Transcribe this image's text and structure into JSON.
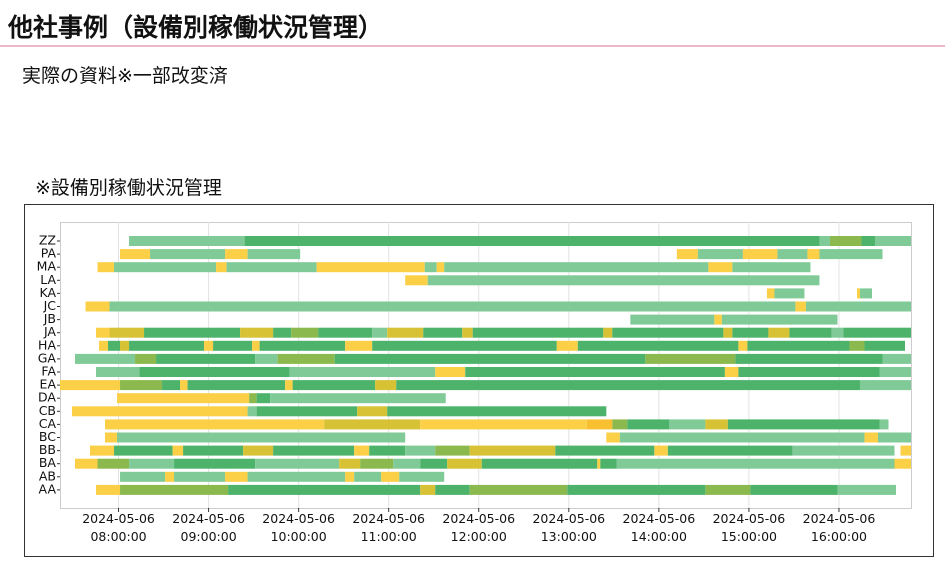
{
  "header": {
    "title": "他社事例（設備別稼働状況管理）"
  },
  "subtitle": "実際の資料※一部改変済",
  "chart_heading": "※設備別稼働状況管理",
  "chart_data": {
    "type": "gantt",
    "categories": [
      "ZZ",
      "PA",
      "MA",
      "LA",
      "KA",
      "JC",
      "JB",
      "JA",
      "HA",
      "GA",
      "FA",
      "EA",
      "DA",
      "CB",
      "CA",
      "BC",
      "BB",
      "BA",
      "AB",
      "AA"
    ],
    "segments": [
      [
        [
          "08:07",
          "09:24",
          "#7fca96"
        ],
        [
          "09:24",
          "15:47",
          "#4db36b"
        ],
        [
          "15:47",
          "15:54",
          "#7fca96"
        ],
        [
          "15:54",
          "16:15",
          "#8cb94d"
        ],
        [
          "16:15",
          "16:24",
          "#4db36b"
        ],
        [
          "16:24",
          "16:48",
          "#7fca96"
        ]
      ],
      [
        [
          "08:01",
          "08:21",
          "#fbcf46"
        ],
        [
          "08:21",
          "09:11",
          "#7fca96"
        ],
        [
          "09:11",
          "09:26",
          "#fbcf46"
        ],
        [
          "09:26",
          "10:01",
          "#7fca96"
        ],
        [
          "14:12",
          "14:26",
          "#fbcf46"
        ],
        [
          "14:26",
          "14:56",
          "#7fca96"
        ],
        [
          "14:56",
          "15:19",
          "#fbcf46"
        ],
        [
          "15:19",
          "15:39",
          "#7fca96"
        ],
        [
          "15:39",
          "15:47",
          "#fbcf46"
        ],
        [
          "15:47",
          "16:29",
          "#7fca96"
        ]
      ],
      [
        [
          "07:46",
          "07:57",
          "#fbcf46"
        ],
        [
          "07:57",
          "09:05",
          "#7fca96"
        ],
        [
          "09:05",
          "09:12",
          "#fbcf46"
        ],
        [
          "09:12",
          "10:12",
          "#7fca96"
        ],
        [
          "10:12",
          "11:24",
          "#fbcf46"
        ],
        [
          "11:24",
          "11:32",
          "#7fca96"
        ],
        [
          "11:32",
          "11:37",
          "#fbcf46"
        ],
        [
          "11:37",
          "14:33",
          "#7fca96"
        ],
        [
          "14:33",
          "14:49",
          "#fbcf46"
        ],
        [
          "14:49",
          "15:41",
          "#7fca96"
        ]
      ],
      [
        [
          "11:11",
          "11:26",
          "#fbcf46"
        ],
        [
          "11:26",
          "15:47",
          "#7fca96"
        ]
      ],
      [
        [
          "15:12",
          "15:17",
          "#fbcf46"
        ],
        [
          "15:17",
          "15:37",
          "#7fca96"
        ],
        [
          "16:12",
          "16:14",
          "#fbcf46"
        ],
        [
          "16:14",
          "16:22",
          "#7fca96"
        ]
      ],
      [
        [
          "07:38",
          "07:54",
          "#fbcf46"
        ],
        [
          "07:54",
          "15:31",
          "#7fca96"
        ],
        [
          "15:31",
          "15:38",
          "#fbcf46"
        ],
        [
          "15:38",
          "16:48",
          "#7fca96"
        ]
      ],
      [
        [
          "13:41",
          "14:37",
          "#7fca96"
        ],
        [
          "14:37",
          "14:42",
          "#fbcf46"
        ],
        [
          "14:42",
          "15:59",
          "#7fca96"
        ]
      ],
      [
        [
          "07:45",
          "07:54",
          "#fbcf46"
        ],
        [
          "07:54",
          "08:17",
          "#d7c235"
        ],
        [
          "08:17",
          "09:21",
          "#4db36b"
        ],
        [
          "09:21",
          "09:43",
          "#d7c235"
        ],
        [
          "09:43",
          "09:55",
          "#4db36b"
        ],
        [
          "09:55",
          "10:13",
          "#8cb94d"
        ],
        [
          "10:13",
          "10:49",
          "#4db36b"
        ],
        [
          "10:49",
          "10:59",
          "#7fca96"
        ],
        [
          "10:59",
          "11:23",
          "#d7c235"
        ],
        [
          "11:23",
          "11:49",
          "#4db36b"
        ],
        [
          "11:49",
          "11:56",
          "#d7c235"
        ],
        [
          "11:56",
          "13:23",
          "#4db36b"
        ],
        [
          "13:23",
          "13:29",
          "#d7c235"
        ],
        [
          "13:29",
          "14:43",
          "#4db36b"
        ],
        [
          "14:43",
          "14:49",
          "#d7c235"
        ],
        [
          "14:49",
          "15:13",
          "#4db36b"
        ],
        [
          "15:13",
          "15:27",
          "#d7c235"
        ],
        [
          "15:27",
          "15:55",
          "#4db36b"
        ],
        [
          "15:55",
          "16:03",
          "#7fca96"
        ],
        [
          "16:03",
          "16:48",
          "#4db36b"
        ]
      ],
      [
        [
          "07:47",
          "07:53",
          "#fbcf46"
        ],
        [
          "07:53",
          "08:01",
          "#4db36b"
        ],
        [
          "08:01",
          "08:07",
          "#d7c235"
        ],
        [
          "08:07",
          "08:57",
          "#4db36b"
        ],
        [
          "08:57",
          "09:03",
          "#fbcf46"
        ],
        [
          "09:03",
          "09:29",
          "#4db36b"
        ],
        [
          "09:29",
          "09:34",
          "#fbcf46"
        ],
        [
          "09:34",
          "10:31",
          "#4db36b"
        ],
        [
          "10:31",
          "10:49",
          "#fbcf46"
        ],
        [
          "10:49",
          "12:52",
          "#4db36b"
        ],
        [
          "12:52",
          "13:06",
          "#fbcf46"
        ],
        [
          "13:06",
          "14:53",
          "#4db36b"
        ],
        [
          "14:53",
          "14:59",
          "#fbcf46"
        ],
        [
          "14:59",
          "16:07",
          "#4db36b"
        ],
        [
          "16:07",
          "16:17",
          "#8cb94d"
        ],
        [
          "16:17",
          "16:44",
          "#4db36b"
        ]
      ],
      [
        [
          "07:31",
          "08:11",
          "#7fca96"
        ],
        [
          "08:11",
          "08:25",
          "#8cb94d"
        ],
        [
          "08:25",
          "09:31",
          "#4db36b"
        ],
        [
          "09:31",
          "09:46",
          "#7fca96"
        ],
        [
          "09:46",
          "10:24",
          "#8cb94d"
        ],
        [
          "10:24",
          "13:51",
          "#4db36b"
        ],
        [
          "13:51",
          "14:51",
          "#8cb94d"
        ],
        [
          "14:51",
          "16:29",
          "#4db36b"
        ],
        [
          "16:29",
          "16:48",
          "#7fca96"
        ]
      ],
      [
        [
          "07:45",
          "08:14",
          "#7fca96"
        ],
        [
          "08:14",
          "09:54",
          "#4db36b"
        ],
        [
          "09:54",
          "11:31",
          "#7fca96"
        ],
        [
          "11:31",
          "11:51",
          "#fbcf46"
        ],
        [
          "11:51",
          "14:44",
          "#4db36b"
        ],
        [
          "14:44",
          "14:53",
          "#fbcf46"
        ],
        [
          "14:53",
          "16:27",
          "#4db36b"
        ],
        [
          "16:27",
          "16:48",
          "#7fca96"
        ]
      ],
      [
        [
          "07:21",
          "08:01",
          "#fbcf46"
        ],
        [
          "08:01",
          "08:29",
          "#8cb94d"
        ],
        [
          "08:29",
          "08:41",
          "#4db36b"
        ],
        [
          "08:41",
          "08:46",
          "#fbcf46"
        ],
        [
          "08:46",
          "09:51",
          "#4db36b"
        ],
        [
          "09:51",
          "09:56",
          "#fbcf46"
        ],
        [
          "09:56",
          "10:51",
          "#4db36b"
        ],
        [
          "10:51",
          "11:05",
          "#d7c235"
        ],
        [
          "11:05",
          "16:14",
          "#4db36b"
        ],
        [
          "16:14",
          "16:48",
          "#7fca96"
        ]
      ],
      [
        [
          "07:59",
          "09:27",
          "#fbcf46"
        ],
        [
          "09:27",
          "09:32",
          "#8cb94d"
        ],
        [
          "09:32",
          "09:41",
          "#4db36b"
        ],
        [
          "09:41",
          "11:38",
          "#7fca96"
        ]
      ],
      [
        [
          "07:29",
          "09:26",
          "#fbcf46"
        ],
        [
          "09:26",
          "09:32",
          "#7fca96"
        ],
        [
          "09:32",
          "10:39",
          "#4db36b"
        ],
        [
          "10:39",
          "10:59",
          "#d7c235"
        ],
        [
          "10:59",
          "13:25",
          "#4db36b"
        ]
      ],
      [
        [
          "07:51",
          "10:17",
          "#fbcf46"
        ],
        [
          "10:17",
          "11:21",
          "#d7c235"
        ],
        [
          "11:21",
          "13:12",
          "#fbcf46"
        ],
        [
          "13:12",
          "13:29",
          "#f8c030"
        ],
        [
          "13:29",
          "13:39",
          "#8cb94d"
        ],
        [
          "13:39",
          "14:07",
          "#4db36b"
        ],
        [
          "14:07",
          "14:31",
          "#7fca96"
        ],
        [
          "14:31",
          "14:46",
          "#d7c235"
        ],
        [
          "14:46",
          "16:27",
          "#4db36b"
        ],
        [
          "16:27",
          "16:33",
          "#7fca96"
        ]
      ],
      [
        [
          "07:51",
          "07:59",
          "#fbcf46"
        ],
        [
          "07:59",
          "11:11",
          "#7fca96"
        ],
        [
          "13:25",
          "13:34",
          "#fbcf46"
        ],
        [
          "13:34",
          "16:17",
          "#7fca96"
        ],
        [
          "16:17",
          "16:26",
          "#fbcf46"
        ],
        [
          "16:26",
          "16:48",
          "#7fca96"
        ]
      ],
      [
        [
          "07:41",
          "07:57",
          "#fbcf46"
        ],
        [
          "07:57",
          "08:36",
          "#4db36b"
        ],
        [
          "08:36",
          "08:43",
          "#fbcf46"
        ],
        [
          "08:43",
          "09:23",
          "#4db36b"
        ],
        [
          "09:23",
          "09:43",
          "#d7c235"
        ],
        [
          "09:43",
          "10:37",
          "#4db36b"
        ],
        [
          "10:37",
          "10:47",
          "#fbcf46"
        ],
        [
          "10:47",
          "11:11",
          "#4db36b"
        ],
        [
          "11:11",
          "11:31",
          "#7fca96"
        ],
        [
          "11:31",
          "11:54",
          "#8cb94d"
        ],
        [
          "11:54",
          "12:51",
          "#d7c235"
        ],
        [
          "12:51",
          "13:57",
          "#4db36b"
        ],
        [
          "13:57",
          "14:06",
          "#fbcf46"
        ],
        [
          "14:06",
          "15:29",
          "#4db36b"
        ],
        [
          "15:29",
          "16:37",
          "#7fca96"
        ],
        [
          "16:41",
          "16:48",
          "#fbcf46"
        ]
      ],
      [
        [
          "07:31",
          "07:46",
          "#fbcf46"
        ],
        [
          "07:46",
          "08:07",
          "#8cb94d"
        ],
        [
          "08:07",
          "08:37",
          "#7fca96"
        ],
        [
          "08:37",
          "09:31",
          "#4db36b"
        ],
        [
          "09:31",
          "10:27",
          "#7fca96"
        ],
        [
          "10:27",
          "10:41",
          "#d7c235"
        ],
        [
          "10:41",
          "11:03",
          "#8cb94d"
        ],
        [
          "11:03",
          "11:21",
          "#7fca96"
        ],
        [
          "11:21",
          "11:39",
          "#4db36b"
        ],
        [
          "11:39",
          "12:02",
          "#d7c235"
        ],
        [
          "12:02",
          "13:19",
          "#4db36b"
        ],
        [
          "13:19",
          "13:21",
          "#fbcf46"
        ],
        [
          "13:21",
          "13:32",
          "#4db36b"
        ],
        [
          "13:32",
          "16:37",
          "#7fca96"
        ],
        [
          "16:37",
          "16:48",
          "#fbcf46"
        ]
      ],
      [
        [
          "08:01",
          "08:31",
          "#7fca96"
        ],
        [
          "08:31",
          "08:37",
          "#fbcf46"
        ],
        [
          "08:37",
          "09:11",
          "#7fca96"
        ],
        [
          "09:11",
          "09:26",
          "#fbcf46"
        ],
        [
          "09:26",
          "10:31",
          "#7fca96"
        ],
        [
          "10:31",
          "10:37",
          "#fbcf46"
        ],
        [
          "10:37",
          "10:55",
          "#7fca96"
        ],
        [
          "10:55",
          "11:07",
          "#fbcf46"
        ],
        [
          "11:07",
          "11:37",
          "#7fca96"
        ]
      ],
      [
        [
          "07:45",
          "08:01",
          "#fbcf46"
        ],
        [
          "08:01",
          "09:13",
          "#8cb94d"
        ],
        [
          "09:13",
          "11:21",
          "#4db36b"
        ],
        [
          "11:21",
          "11:31",
          "#d7c235"
        ],
        [
          "11:31",
          "11:54",
          "#4db36b"
        ],
        [
          "11:54",
          "12:59",
          "#8cb94d"
        ],
        [
          "12:59",
          "14:31",
          "#4db36b"
        ],
        [
          "14:31",
          "15:01",
          "#8cb94d"
        ],
        [
          "15:01",
          "15:59",
          "#4db36b"
        ],
        [
          "15:59",
          "16:38",
          "#7fca96"
        ]
      ]
    ],
    "xlim": [
      "07:21",
      "16:48"
    ],
    "xticks": [
      {
        "value": "08:00",
        "label": "2024-05-06\n08:00:00"
      },
      {
        "value": "09:00",
        "label": "2024-05-06\n09:00:00"
      },
      {
        "value": "10:00",
        "label": "2024-05-06\n10:00:00"
      },
      {
        "value": "11:00",
        "label": "2024-05-06\n11:00:00"
      },
      {
        "value": "12:00",
        "label": "2024-05-06\n12:00:00"
      },
      {
        "value": "13:00",
        "label": "2024-05-06\n13:00:00"
      },
      {
        "value": "14:00",
        "label": "2024-05-06\n14:00:00"
      },
      {
        "value": "15:00",
        "label": "2024-05-06\n15:00:00"
      },
      {
        "value": "16:00",
        "label": "2024-05-06\n16:00:00"
      }
    ],
    "grid": true
  }
}
